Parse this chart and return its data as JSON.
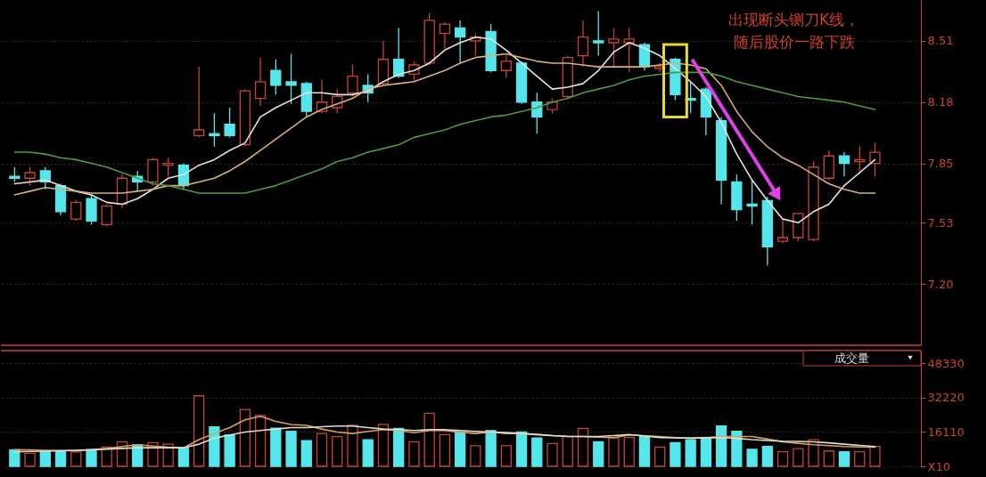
{
  "chart_data": [
    {
      "type": "candlestick",
      "categories": [
        null,
        null,
        null,
        null,
        null,
        null,
        null,
        null,
        null,
        null,
        null,
        null,
        null,
        null,
        null,
        null,
        null,
        null,
        null,
        null,
        null,
        null,
        null,
        null,
        null,
        null,
        null,
        null,
        null,
        null,
        null,
        null,
        null,
        null,
        null,
        null,
        null,
        null,
        null,
        null,
        null,
        null,
        null,
        null,
        null,
        null,
        null,
        null,
        null,
        null,
        null,
        null,
        null,
        null,
        null,
        null,
        null
      ],
      "ohlc": [
        [
          7.78,
          7.83,
          7.75,
          7.77
        ],
        [
          7.77,
          7.83,
          7.73,
          7.8
        ],
        [
          7.81,
          7.83,
          7.71,
          7.75
        ],
        [
          7.73,
          7.74,
          7.57,
          7.59
        ],
        [
          7.55,
          7.65,
          7.54,
          7.64
        ],
        [
          7.66,
          7.68,
          7.52,
          7.54
        ],
        [
          7.52,
          7.63,
          7.51,
          7.62
        ],
        [
          7.63,
          7.79,
          7.61,
          7.77
        ],
        [
          7.78,
          7.81,
          7.7,
          7.75
        ],
        [
          7.75,
          7.88,
          7.73,
          7.87
        ],
        [
          7.84,
          7.88,
          7.78,
          7.85
        ],
        [
          7.84,
          7.85,
          7.71,
          7.73
        ],
        [
          8.0,
          8.37,
          7.99,
          8.03
        ],
        [
          8.01,
          8.12,
          7.94,
          8.0
        ],
        [
          8.06,
          8.15,
          7.99,
          8.0
        ],
        [
          7.95,
          8.25,
          7.94,
          8.24
        ],
        [
          8.2,
          8.42,
          8.16,
          8.29
        ],
        [
          8.35,
          8.41,
          8.22,
          8.27
        ],
        [
          8.29,
          8.44,
          8.17,
          8.27
        ],
        [
          8.28,
          8.29,
          8.1,
          8.13
        ],
        [
          8.13,
          8.3,
          8.12,
          8.18
        ],
        [
          8.15,
          8.25,
          8.12,
          8.21
        ],
        [
          8.23,
          8.38,
          8.21,
          8.32
        ],
        [
          8.27,
          8.33,
          8.18,
          8.23
        ],
        [
          8.28,
          8.51,
          8.27,
          8.41
        ],
        [
          8.41,
          8.58,
          8.31,
          8.32
        ],
        [
          8.33,
          8.4,
          8.29,
          8.38
        ],
        [
          8.39,
          8.66,
          8.38,
          8.62
        ],
        [
          8.55,
          8.61,
          8.47,
          8.6
        ],
        [
          8.58,
          8.62,
          8.39,
          8.53
        ],
        [
          8.51,
          8.55,
          8.43,
          8.53
        ],
        [
          8.56,
          8.6,
          8.34,
          8.35
        ],
        [
          8.35,
          8.43,
          8.31,
          8.4
        ],
        [
          8.39,
          8.4,
          8.17,
          8.18
        ],
        [
          8.18,
          8.23,
          8.01,
          8.1
        ],
        [
          8.14,
          8.2,
          8.12,
          8.18
        ],
        [
          8.21,
          8.43,
          8.2,
          8.42
        ],
        [
          8.43,
          8.62,
          8.37,
          8.53
        ],
        [
          8.51,
          8.67,
          8.43,
          8.5
        ],
        [
          8.5,
          8.58,
          8.37,
          8.52
        ],
        [
          8.5,
          8.58,
          8.34,
          8.52
        ],
        [
          8.49,
          8.5,
          8.35,
          8.37
        ],
        [
          8.36,
          8.39,
          8.34,
          8.37
        ],
        [
          8.41,
          8.42,
          8.19,
          8.22
        ],
        [
          8.2,
          8.29,
          8.12,
          8.19
        ],
        [
          8.25,
          8.26,
          8.0,
          8.1
        ],
        [
          8.08,
          8.1,
          7.63,
          7.76
        ],
        [
          7.75,
          7.79,
          7.54,
          7.6
        ],
        [
          7.63,
          7.76,
          7.52,
          7.62
        ],
        [
          7.65,
          7.67,
          7.3,
          7.4
        ],
        [
          7.43,
          7.55,
          7.42,
          7.45
        ],
        [
          7.45,
          7.58,
          7.43,
          7.58
        ],
        [
          7.44,
          7.86,
          7.43,
          7.83
        ],
        [
          7.77,
          7.92,
          7.76,
          7.89
        ],
        [
          7.89,
          7.91,
          7.78,
          7.85
        ],
        [
          7.86,
          7.94,
          7.79,
          7.87
        ],
        [
          7.85,
          7.96,
          7.78,
          7.91
        ]
      ],
      "colors": [
        "#55e6ec",
        "#c8452f",
        "#55e6ec",
        "#55e6ec",
        "#c8452f",
        "#55e6ec",
        "#c8452f",
        "#c8452f",
        "#55e6ec",
        "#c8452f",
        "#c8452f",
        "#55e6ec",
        "#c8452f",
        "#55e6ec",
        "#55e6ec",
        "#c8452f",
        "#c8452f",
        "#55e6ec",
        "#55e6ec",
        "#55e6ec",
        "#c8452f",
        "#c8452f",
        "#c8452f",
        "#55e6ec",
        "#c8452f",
        "#55e6ec",
        "#c8452f",
        "#c8452f",
        "#c8452f",
        "#55e6ec",
        "#c8452f",
        "#55e6ec",
        "#c8452f",
        "#55e6ec",
        "#55e6ec",
        "#c8452f",
        "#c8452f",
        "#c8452f",
        "#55e6ec",
        "#c8452f",
        "#c8452f",
        "#55e6ec",
        "#c8452f",
        "#55e6ec",
        "#55e6ec",
        "#55e6ec",
        "#55e6ec",
        "#55e6ec",
        "#55e6ec",
        "#55e6ec",
        "#c8452f",
        "#c8452f",
        "#c8452f",
        "#c8452f",
        "#55e6ec",
        "#c8452f",
        "#c8452f"
      ],
      "series": [
        {
          "type": "line",
          "color": "#e8e4dc",
          "values": [
            7.74,
            7.75,
            7.76,
            7.73,
            7.7,
            7.68,
            7.64,
            7.63,
            7.66,
            7.71,
            7.77,
            7.79,
            7.84,
            7.87,
            7.92,
            7.96,
            8.1,
            8.15,
            8.19,
            8.23,
            8.23,
            8.22,
            8.22,
            8.24,
            8.29,
            8.33,
            8.35,
            8.39,
            8.46,
            8.5,
            8.53,
            8.52,
            8.46,
            8.39,
            8.32,
            8.25,
            8.26,
            8.28,
            8.35,
            8.45,
            8.5,
            8.47,
            8.43,
            8.36,
            8.29,
            8.21,
            8.07,
            7.9,
            7.76,
            7.65,
            7.55,
            7.53,
            7.59,
            7.63,
            7.73,
            7.8,
            7.87
          ]
        },
        {
          "type": "line",
          "color": "#d8b07a",
          "values": [
            7.68,
            7.7,
            7.72,
            7.71,
            7.7,
            7.69,
            7.69,
            7.69,
            7.7,
            7.71,
            7.73,
            7.73,
            7.75,
            7.77,
            7.81,
            7.86,
            7.92,
            7.98,
            8.04,
            8.1,
            8.14,
            8.17,
            8.2,
            8.25,
            8.27,
            8.28,
            8.29,
            8.32,
            8.35,
            8.39,
            8.42,
            8.43,
            8.44,
            8.42,
            8.4,
            8.39,
            8.39,
            8.38,
            8.37,
            8.37,
            8.37,
            8.37,
            8.38,
            8.39,
            8.38,
            8.36,
            8.27,
            8.13,
            8.02,
            7.94,
            7.88,
            7.84,
            7.79,
            7.74,
            7.71,
            7.69,
            7.69
          ]
        },
        {
          "type": "line",
          "color": "#4f9a3a",
          "values": [
            7.91,
            7.91,
            7.9,
            7.88,
            7.87,
            7.85,
            7.83,
            7.8,
            7.77,
            7.74,
            7.73,
            7.71,
            7.69,
            7.69,
            7.69,
            7.69,
            7.71,
            7.73,
            7.76,
            7.79,
            7.82,
            7.86,
            7.88,
            7.91,
            7.93,
            7.95,
            7.99,
            8.01,
            8.03,
            8.06,
            8.08,
            8.1,
            8.11,
            8.13,
            8.15,
            8.18,
            8.2,
            8.23,
            8.25,
            8.27,
            8.3,
            8.32,
            8.33,
            8.34,
            8.34,
            8.34,
            8.32,
            8.29,
            8.27,
            8.25,
            8.23,
            8.21,
            8.2,
            8.19,
            8.18,
            8.16,
            8.14
          ]
        }
      ],
      "ylim": [
        6.87,
        8.73
      ],
      "yticks": [
        {
          "value": 7.2,
          "label": "7.20"
        },
        7.53,
        7.85,
        8.18,
        8.51
      ],
      "grid": "y",
      "tick_labels": "y",
      "annotations": [
        "出现断头铡刀K线，",
        "随后股价一路下跌"
      ]
    },
    {
      "type": "bar",
      "title": "成交量",
      "categories": [
        null,
        null,
        null,
        null,
        null,
        null,
        null,
        null,
        null,
        null,
        null,
        null,
        null,
        null,
        null,
        null,
        null,
        null,
        null,
        null,
        null,
        null,
        null,
        null,
        null,
        null,
        null,
        null,
        null,
        null,
        null,
        null,
        null,
        null,
        null,
        null,
        null,
        null,
        null,
        null,
        null,
        null,
        null,
        null,
        null,
        null,
        null,
        null,
        null,
        null,
        null,
        null,
        null,
        null,
        null,
        null,
        null
      ],
      "series": [
        {
          "type": "bar",
          "values": [
            7800,
            6100,
            6800,
            7200,
            6700,
            7800,
            9000,
            11500,
            10100,
            11100,
            10400,
            8700,
            33100,
            18500,
            14700,
            26700,
            23900,
            17900,
            16400,
            12100,
            15400,
            13900,
            19300,
            12500,
            19700,
            17800,
            11500,
            24900,
            14900,
            16100,
            9700,
            16800,
            9700,
            16100,
            13300,
            10700,
            13900,
            17800,
            11500,
            13300,
            13500,
            13900,
            9000,
            11100,
            12500,
            13500,
            18900,
            16400,
            8000,
            9300,
            6800,
            8300,
            12500,
            7200,
            6800,
            6800,
            9300
          ],
          "colors": [
            "#55e6ec",
            "#c8452f",
            "#55e6ec",
            "#55e6ec",
            "#c8452f",
            "#55e6ec",
            "#c8452f",
            "#c8452f",
            "#55e6ec",
            "#c8452f",
            "#c8452f",
            "#55e6ec",
            "#c8452f",
            "#55e6ec",
            "#55e6ec",
            "#c8452f",
            "#c8452f",
            "#55e6ec",
            "#55e6ec",
            "#55e6ec",
            "#c8452f",
            "#c8452f",
            "#c8452f",
            "#55e6ec",
            "#c8452f",
            "#55e6ec",
            "#c8452f",
            "#c8452f",
            "#c8452f",
            "#55e6ec",
            "#c8452f",
            "#55e6ec",
            "#c8452f",
            "#55e6ec",
            "#55e6ec",
            "#c8452f",
            "#c8452f",
            "#c8452f",
            "#55e6ec",
            "#c8452f",
            "#c8452f",
            "#55e6ec",
            "#c8452f",
            "#55e6ec",
            "#55e6ec",
            "#55e6ec",
            "#55e6ec",
            "#55e6ec",
            "#55e6ec",
            "#55e6ec",
            "#c8452f",
            "#c8452f",
            "#c8452f",
            "#c8452f",
            "#55e6ec",
            "#c8452f",
            "#c8452f"
          ]
        },
        {
          "type": "line",
          "color": "#d9a05a",
          "values": [
            7800,
            7700,
            7500,
            7400,
            7300,
            7800,
            8300,
            9300,
            10100,
            9500,
            9000,
            8700,
            12500,
            15400,
            18200,
            21800,
            23500,
            21100,
            19600,
            19200,
            17500,
            16100,
            15400,
            16400,
            17200,
            16800,
            15800,
            16800,
            16800,
            16100,
            15400,
            16100,
            15400,
            15400,
            15000,
            14400,
            14100,
            14000,
            13700,
            13500,
            14700,
            14400,
            14000,
            13500,
            13200,
            13500,
            14000,
            14000,
            14000,
            12800,
            11500,
            10800,
            10100,
            9700,
            9300,
            9100,
            9000
          ]
        },
        {
          "type": "line",
          "color": "#e0ddd0",
          "values": [
            6800,
            7000,
            7100,
            7300,
            7500,
            7800,
            8100,
            8400,
            8700,
            8700,
            8700,
            8700,
            10400,
            13200,
            14700,
            16100,
            16800,
            17500,
            18200,
            18200,
            18600,
            18900,
            18900,
            18200,
            17500,
            17200,
            16800,
            17200,
            17200,
            16800,
            16400,
            16100,
            15800,
            15400,
            14900,
            14400,
            14000,
            14000,
            14000,
            14400,
            14900,
            14200,
            13500,
            13400,
            13200,
            13400,
            13500,
            13100,
            12500,
            12100,
            11800,
            11700,
            11500,
            11000,
            10400,
            9800,
            9300
          ]
        }
      ],
      "ylim": [
        0,
        54300
      ],
      "yticks": [
        {
          "value": 0,
          "label": "X10"
        },
        16110,
        32220,
        48330
      ],
      "grid": "y",
      "tick_labels": "y"
    }
  ]
}
